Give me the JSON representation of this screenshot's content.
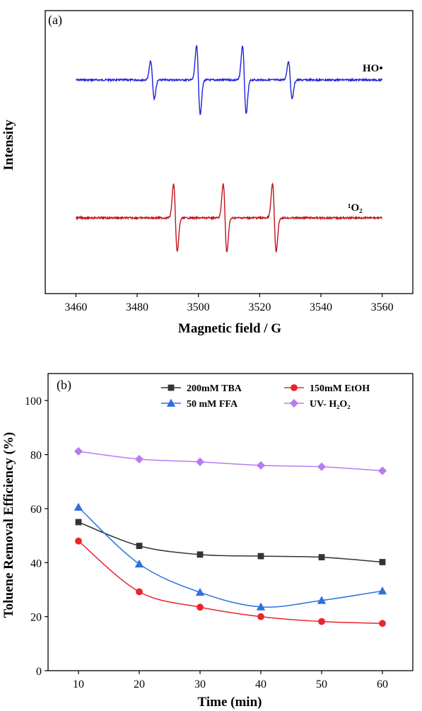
{
  "chart_data": [
    {
      "type": "line",
      "panel_label": "(a)",
      "xlabel": "Magnetic field / G",
      "ylabel": "Intensity",
      "xlim": [
        3450,
        3570
      ],
      "x_ticks": [
        "3460",
        "3480",
        "3500",
        "3520",
        "3540",
        "3560"
      ],
      "y_ticks_shown": false,
      "grid": false,
      "series": [
        {
          "name": "HO•",
          "color": "#1f1fe0",
          "x_range": [
            3460,
            3560
          ],
          "peaks": [
            3485,
            3500,
            3515,
            3530
          ],
          "peak_amplitudes": [
            0.55,
            1.0,
            1.0,
            0.55
          ]
        },
        {
          "name": "¹O₂",
          "color": "#c0141c",
          "x_range": [
            3460,
            3560
          ],
          "peaks": [
            3492.5,
            3508.7,
            3524.8
          ],
          "peak_amplitudes": [
            1.0,
            1.0,
            1.0
          ]
        }
      ],
      "annotations": [
        "HO•",
        "¹O₂"
      ]
    },
    {
      "type": "line",
      "panel_label": "(b)",
      "xlabel": "Time (min)",
      "ylabel": "Toluene Removal Efficiency (%)",
      "xlim": [
        5,
        65
      ],
      "ylim": [
        0,
        110
      ],
      "x_ticks": [
        "10",
        "20",
        "30",
        "40",
        "50",
        "60"
      ],
      "y_ticks": [
        "0",
        "20",
        "40",
        "60",
        "80",
        "100"
      ],
      "grid": false,
      "legend_position": "top",
      "x": [
        10,
        20,
        30,
        40,
        50,
        60
      ],
      "series": [
        {
          "name": "200mM  TBA",
          "color": "#333333",
          "marker": "square",
          "values": [
            55.0,
            46.2,
            43.0,
            42.4,
            42.0,
            40.2
          ]
        },
        {
          "name": "150mM  EtOH",
          "color": "#e8262c",
          "marker": "circle",
          "values": [
            48.0,
            29.2,
            23.5,
            20.0,
            18.2,
            17.5
          ]
        },
        {
          "name": "50 mM  FFA",
          "color": "#2f6fe0",
          "marker": "triangle",
          "values": [
            60.5,
            39.5,
            29.0,
            23.6,
            26.0,
            29.5
          ]
        },
        {
          "name": "UV- H₂O₂",
          "color": "#b67cf0",
          "marker": "diamond",
          "values": [
            81.2,
            78.3,
            77.3,
            76.0,
            75.5,
            74.0
          ]
        }
      ]
    }
  ]
}
